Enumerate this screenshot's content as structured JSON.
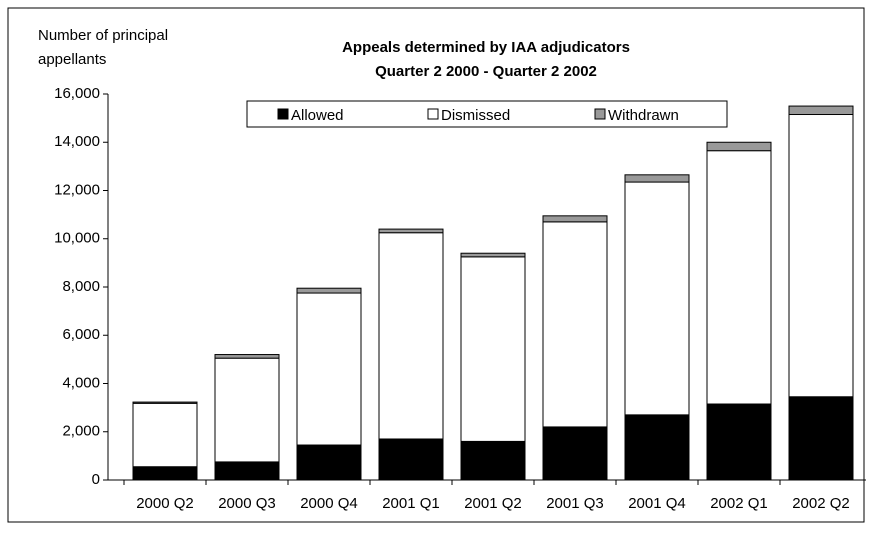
{
  "chart_data": {
    "type": "stacked_bar",
    "title": "Appeals determined by IAA adjudicators",
    "subtitle": "Quarter 2 2000 - Quarter 2 2002",
    "y_label": [
      "Number of principal",
      "appellants"
    ],
    "categories": [
      "2000 Q2",
      "2000 Q3",
      "2000 Q4",
      "2001 Q1",
      "2001 Q2",
      "2001 Q3",
      "2001 Q4",
      "2002 Q1",
      "2002 Q2"
    ],
    "series": [
      {
        "name": "Allowed",
        "color": "#000000",
        "values": [
          550,
          750,
          1450,
          1700,
          1600,
          2200,
          2700,
          3150,
          3450
        ]
      },
      {
        "name": "Dismissed",
        "color": "#ffffff",
        "values": [
          2630,
          4300,
          6300,
          8550,
          7650,
          8500,
          9650,
          10500,
          11700
        ]
      },
      {
        "name": "Withdrawn",
        "color": "#999999",
        "values": [
          50,
          150,
          200,
          150,
          150,
          250,
          300,
          350,
          350
        ]
      }
    ],
    "ylim": [
      0,
      16000
    ],
    "yticks": [
      0,
      {
        "value": 2000,
        "label": "2,000"
      },
      {
        "value": 4000,
        "label": "4,000"
      },
      {
        "value": 6000,
        "label": "6,000"
      },
      {
        "value": 8000,
        "label": "8,000"
      },
      {
        "value": 10000,
        "label": "10,000"
      },
      {
        "value": 12000,
        "label": "12,000"
      },
      {
        "value": 14000,
        "label": "14,000"
      },
      {
        "value": 16000,
        "label": "16,000"
      }
    ],
    "legend": "top"
  }
}
